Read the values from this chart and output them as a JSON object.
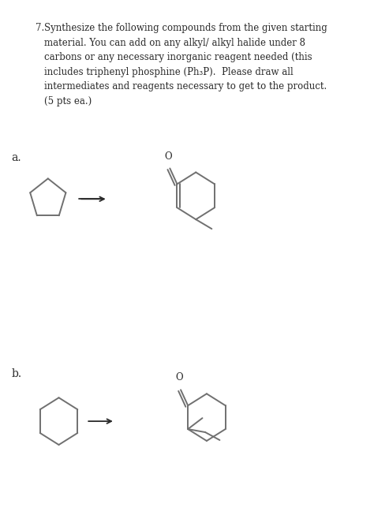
{
  "bg_color": "#ffffff",
  "text_color": "#2a2a2a",
  "line_color": "#707070",
  "title_number": "7.",
  "title_text": "Synthesize the following compounds from the given starting\nmaterial. You can add on any alkyl/ alkyl halide under 8\ncarbons or any necessary inorganic reagent needed (this\nincludes triphenyl phosphine (Ph₃P).  Please draw all\nintermediates and reagents necessary to get to the product.\n(5 pts ea.)",
  "label_a": "a.",
  "label_b": "b.",
  "font_size_title": 8.5,
  "font_size_label": 10,
  "font_size_o": 8.5
}
